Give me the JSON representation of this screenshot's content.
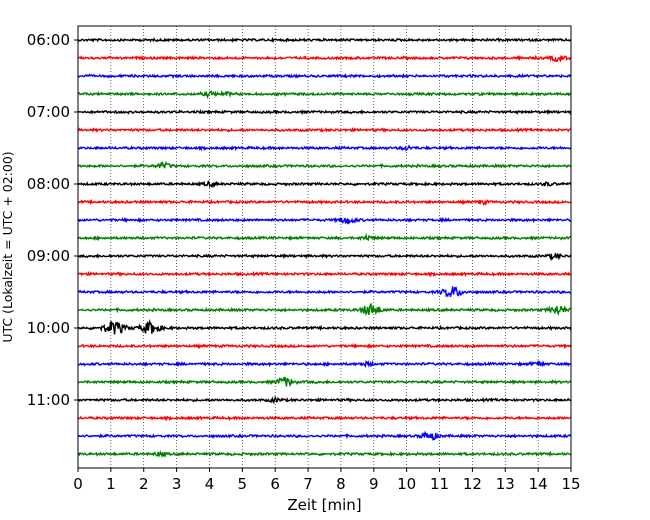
{
  "chart_data": {
    "type": "line",
    "title": "",
    "xlabel": "Zeit  [min]",
    "ylabel": "UTC (Lokalzeit = UTC + 02:00)",
    "xlim": [
      0,
      15
    ],
    "x_ticks": [
      "0",
      "1",
      "2",
      "3",
      "4",
      "5",
      "6",
      "7",
      "8",
      "9",
      "10",
      "11",
      "12",
      "13",
      "14",
      "15"
    ],
    "y_ticks": [
      "06:00",
      "07:00",
      "08:00",
      "09:00",
      "10:00",
      "11:00"
    ],
    "grid_vertical": true,
    "grid_style": "dotted",
    "trace_start": "06:00",
    "trace_interval_min": 15,
    "trace_count": 24,
    "trace_colors": [
      "#000000",
      "#ff0000",
      "#0000ff",
      "#008000"
    ],
    "events": [
      {
        "trace": 1,
        "minute": 14.6,
        "amplitude": 1.3
      },
      {
        "trace": 3,
        "minute": 4.0,
        "amplitude": 1.0
      },
      {
        "trace": 3,
        "minute": 4.5,
        "amplitude": 0.7
      },
      {
        "trace": 6,
        "minute": 10.0,
        "amplitude": 0.8
      },
      {
        "trace": 7,
        "minute": 2.6,
        "amplitude": 1.3
      },
      {
        "trace": 8,
        "minute": 4.0,
        "amplitude": 0.8
      },
      {
        "trace": 8,
        "minute": 14.3,
        "amplitude": 0.6
      },
      {
        "trace": 9,
        "minute": 12.3,
        "amplitude": 0.7
      },
      {
        "trace": 10,
        "minute": 8.2,
        "amplitude": 1.6
      },
      {
        "trace": 11,
        "minute": 8.8,
        "amplitude": 0.9
      },
      {
        "trace": 12,
        "minute": 14.5,
        "amplitude": 1.0
      },
      {
        "trace": 14,
        "minute": 11.4,
        "amplitude": 2.5
      },
      {
        "trace": 15,
        "minute": 8.9,
        "amplitude": 2.6
      },
      {
        "trace": 15,
        "minute": 14.6,
        "amplitude": 2.0
      },
      {
        "trace": 16,
        "minute": 1.1,
        "amplitude": 3.0
      },
      {
        "trace": 16,
        "minute": 2.2,
        "amplitude": 2.7
      },
      {
        "trace": 18,
        "minute": 8.8,
        "amplitude": 0.8
      },
      {
        "trace": 18,
        "minute": 14.0,
        "amplitude": 0.8
      },
      {
        "trace": 19,
        "minute": 6.3,
        "amplitude": 2.0
      },
      {
        "trace": 20,
        "minute": 6.0,
        "amplitude": 0.8
      },
      {
        "trace": 22,
        "minute": 10.7,
        "amplitude": 1.8
      },
      {
        "trace": 23,
        "minute": 2.5,
        "amplitude": 0.8
      }
    ]
  }
}
